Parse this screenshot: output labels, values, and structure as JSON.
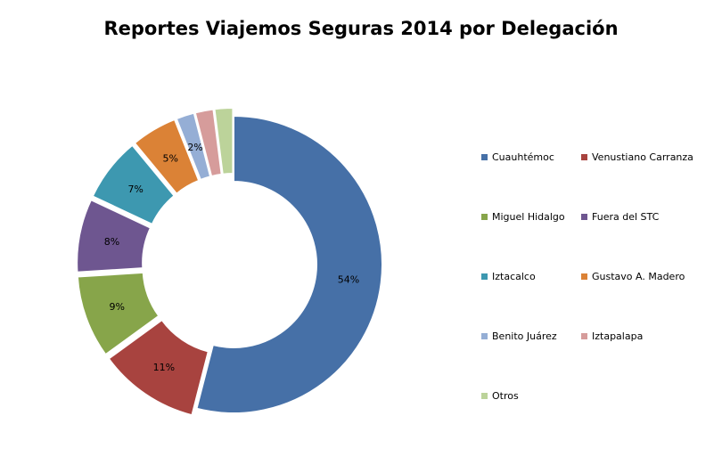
{
  "chart_data": {
    "type": "donut",
    "title": "Reportes Viajemos Seguras 2014 por Delegación",
    "legend_position": "right",
    "slices": [
      {
        "name": "Cuauhtémoc",
        "value": 54,
        "label": "54%",
        "color": "#4670a7"
      },
      {
        "name": "Venustiano Carranza",
        "value": 11,
        "label": "11%",
        "color": "#a8433f"
      },
      {
        "name": "Miguel Hidalgo",
        "value": 9,
        "label": "9%",
        "color": "#87a54a"
      },
      {
        "name": "Fuera del STC",
        "value": 8,
        "label": "8%",
        "color": "#6e5690"
      },
      {
        "name": "Iztacalco",
        "value": 7,
        "label": "7%",
        "color": "#3d98b0"
      },
      {
        "name": "Gustavo A. Madero",
        "value": 5,
        "label": "5%",
        "color": "#db8236"
      },
      {
        "name": "Benito Juárez",
        "value": 2,
        "label": "2%",
        "color": "#95aed5"
      },
      {
        "name": "Iztapalapa",
        "value": 2,
        "label": "",
        "color": "#d69c9b"
      },
      {
        "name": "Otros",
        "value": 2,
        "label": "",
        "color": "#bcd39a"
      }
    ]
  }
}
